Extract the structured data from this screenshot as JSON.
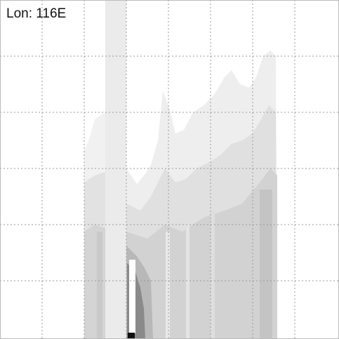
{
  "label": "Lon: 116E"
}
